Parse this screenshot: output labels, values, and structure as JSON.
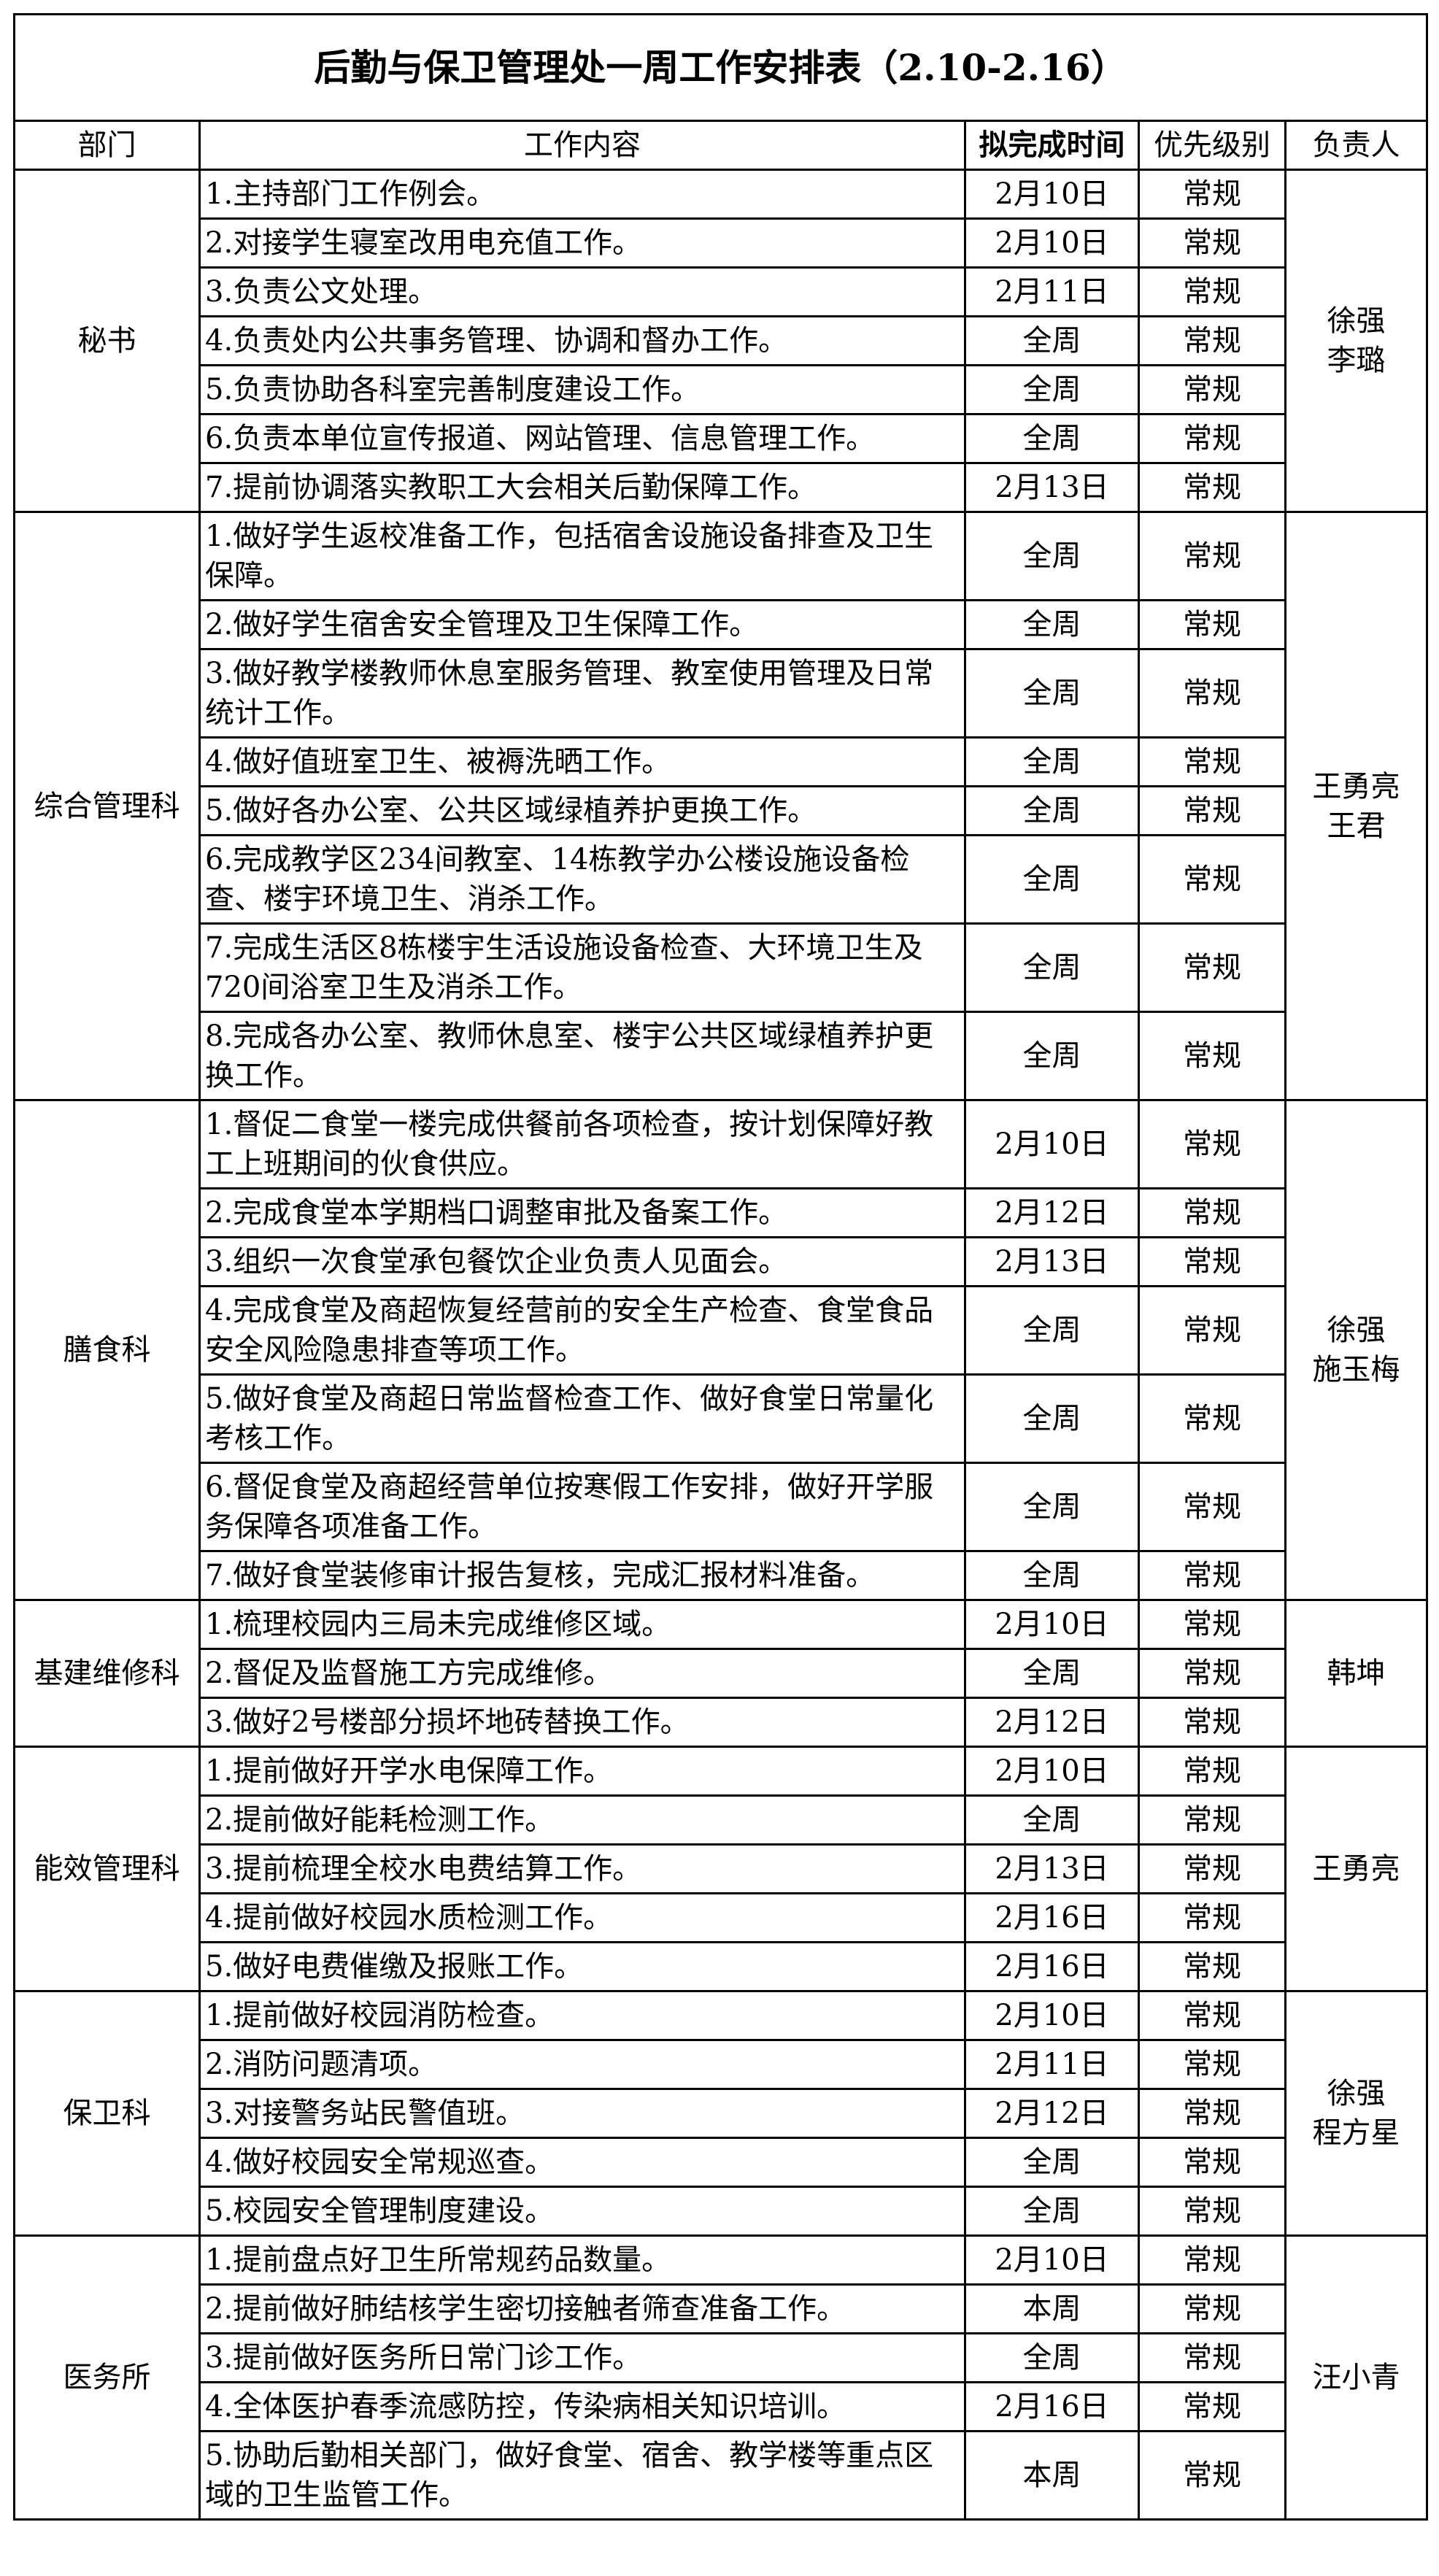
{
  "title": "后勤与保卫管理处一周工作安排表（2.10-2.16）",
  "headers": {
    "dept": "部门",
    "content": "工作内容",
    "due": "拟完成时间",
    "priority": "优先级别",
    "owner": "负责人"
  },
  "departments": [
    {
      "name": "秘书",
      "owner": "徐强\n李璐",
      "rows": [
        {
          "task": "1.主持部门工作例会。",
          "due": "2月10日",
          "priority": "常规"
        },
        {
          "task": "2.对接学生寝室改用电充值工作。",
          "due": "2月10日",
          "priority": "常规"
        },
        {
          "task": "3.负责公文处理。",
          "due": "2月11日",
          "priority": "常规"
        },
        {
          "task": "4.负责处内公共事务管理、协调和督办工作。",
          "due": "全周",
          "priority": "常规"
        },
        {
          "task": "5.负责协助各科室完善制度建设工作。",
          "due": "全周",
          "priority": "常规"
        },
        {
          "task": "6.负责本单位宣传报道、网站管理、信息管理工作。",
          "due": "全周",
          "priority": "常规"
        },
        {
          "task": "7.提前协调落实教职工大会相关后勤保障工作。",
          "due": "2月13日",
          "priority": "常规"
        }
      ]
    },
    {
      "name": "综合管理科",
      "owner": "王勇亮\n王君",
      "rows": [
        {
          "task": "1.做好学生返校准备工作，包括宿舍设施设备排查及卫生保障。",
          "due": "全周",
          "priority": "常规",
          "lines": 2
        },
        {
          "task": "2.做好学生宿舍安全管理及卫生保障工作。",
          "due": "全周",
          "priority": "常规"
        },
        {
          "task": "3.做好教学楼教师休息室服务管理、教室使用管理及日常统计工作。",
          "due": "全周",
          "priority": "常规",
          "lines": 2
        },
        {
          "task": "4.做好值班室卫生、被褥洗晒工作。",
          "due": "全周",
          "priority": "常规"
        },
        {
          "task": "5.做好各办公室、公共区域绿植养护更换工作。",
          "due": "全周",
          "priority": "常规"
        },
        {
          "task": "6.完成教学区234间教室、14栋教学办公楼设施设备检查、楼宇环境卫生、消杀工作。",
          "due": "全周",
          "priority": "常规",
          "lines": 2
        },
        {
          "task": "7.完成生活区8栋楼宇生活设施设备检查、大环境卫生及720间浴室卫生及消杀工作。",
          "due": "全周",
          "priority": "常规",
          "lines": 2
        },
        {
          "task": "8.完成各办公室、教师休息室、楼宇公共区域绿植养护更换工作。",
          "due": "全周",
          "priority": "常规",
          "lines": 2
        }
      ]
    },
    {
      "name": "膳食科",
      "owner": "徐强\n施玉梅",
      "rows": [
        {
          "task": "1.督促二食堂一楼完成供餐前各项检查，按计划保障好教工上班期间的伙食供应。",
          "due": "2月10日",
          "priority": "常规",
          "lines": 2
        },
        {
          "task": "2.完成食堂本学期档口调整审批及备案工作。",
          "due": "2月12日",
          "priority": "常规"
        },
        {
          "task": "3.组织一次食堂承包餐饮企业负责人见面会。",
          "due": "2月13日",
          "priority": "常规"
        },
        {
          "task": "4.完成食堂及商超恢复经营前的安全生产检查、食堂食品安全风险隐患排查等项工作。",
          "due": "全周",
          "priority": "常规",
          "lines": 2
        },
        {
          "task": "5.做好食堂及商超日常监督检查工作、做好食堂日常量化考核工作。",
          "due": "全周",
          "priority": "常规",
          "lines": 2
        },
        {
          "task": "6.督促食堂及商超经营单位按寒假工作安排，做好开学服务保障各项准备工作。",
          "due": "全周",
          "priority": "常规",
          "lines": 2
        },
        {
          "task": "7.做好食堂装修审计报告复核，完成汇报材料准备。",
          "due": "全周",
          "priority": "常规"
        }
      ]
    },
    {
      "name": "基建维修科",
      "owner": "韩坤",
      "rows": [
        {
          "task": "1.梳理校园内三局未完成维修区域。",
          "due": "2月10日",
          "priority": "常规"
        },
        {
          "task": "2.督促及监督施工方完成维修。",
          "due": "全周",
          "priority": "常规"
        },
        {
          "task": "3.做好2号楼部分损坏地砖替换工作。",
          "due": "2月12日",
          "priority": "常规"
        }
      ]
    },
    {
      "name": "能效管理科",
      "owner": "王勇亮",
      "rows": [
        {
          "task": "1.提前做好开学水电保障工作。",
          "due": "2月10日",
          "priority": "常规"
        },
        {
          "task": "2.提前做好能耗检测工作。",
          "due": "全周",
          "priority": "常规"
        },
        {
          "task": "3.提前梳理全校水电费结算工作。",
          "due": "2月13日",
          "priority": "常规"
        },
        {
          "task": "4.提前做好校园水质检测工作。",
          "due": "2月16日",
          "priority": "常规"
        },
        {
          "task": "5.做好电费催缴及报账工作。",
          "due": "2月16日",
          "priority": "常规"
        }
      ]
    },
    {
      "name": "保卫科",
      "owner": "徐强\n程方星",
      "rows": [
        {
          "task": "1.提前做好校园消防检查。",
          "due": "2月10日",
          "priority": "常规"
        },
        {
          "task": "2.消防问题清项。",
          "due": "2月11日",
          "priority": "常规"
        },
        {
          "task": "3.对接警务站民警值班。",
          "due": "2月12日",
          "priority": "常规"
        },
        {
          "task": "4.做好校园安全常规巡查。",
          "due": "全周",
          "priority": "常规"
        },
        {
          "task": "5.校园安全管理制度建设。",
          "due": "全周",
          "priority": "常规"
        }
      ]
    },
    {
      "name": "医务所",
      "owner": "汪小青",
      "rows": [
        {
          "task": "1.提前盘点好卫生所常规药品数量。",
          "due": "2月10日",
          "priority": "常规"
        },
        {
          "task": "2.提前做好肺结核学生密切接触者筛查准备工作。",
          "due": "本周",
          "priority": "常规"
        },
        {
          "task": "3.提前做好医务所日常门诊工作。",
          "due": "全周",
          "priority": "常规"
        },
        {
          "task": "4.全体医护春季流感防控，传染病相关知识培训。",
          "due": "2月16日",
          "priority": "常规"
        },
        {
          "task": "5.协助后勤相关部门，做好食堂、宿舍、教学楼等重点区域的卫生监管工作。",
          "due": "本周",
          "priority": "常规",
          "lines": 2
        }
      ]
    }
  ]
}
